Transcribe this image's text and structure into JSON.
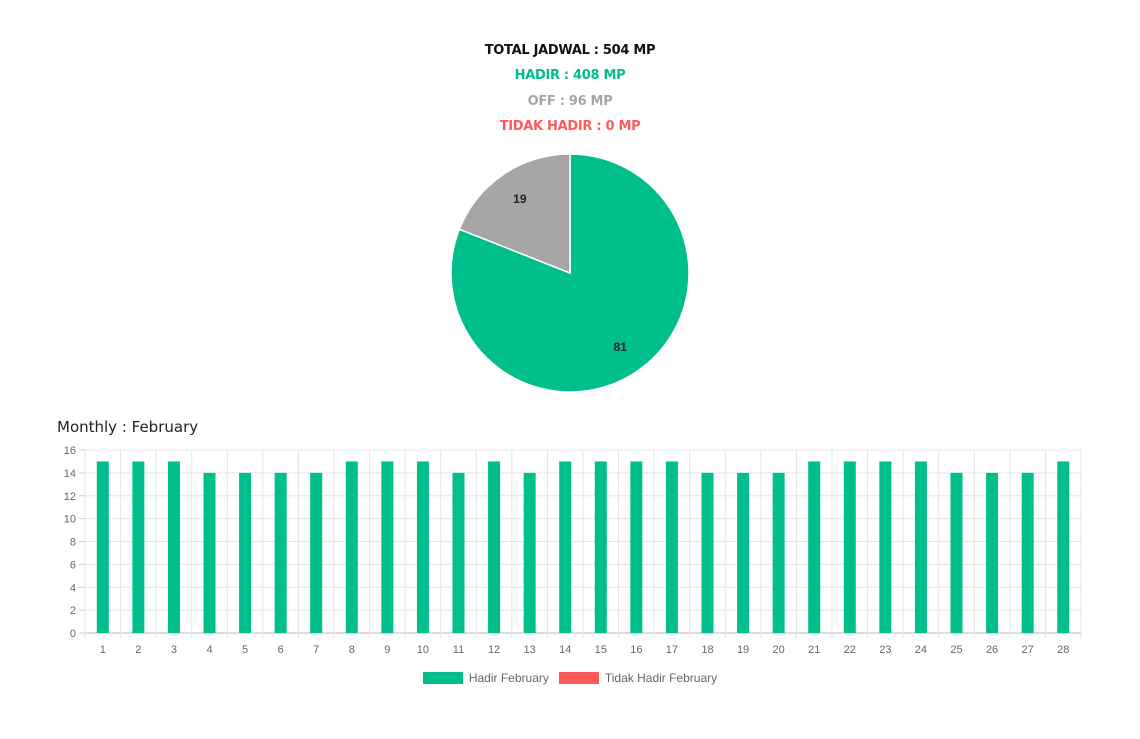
{
  "summary": {
    "total": "TOTAL JADWAL : 504 MP",
    "hadir": "HADIR : 408 MP",
    "off": "OFF : 96 MP",
    "tidak_hadir": "TIDAK HADIR : 0 MP"
  },
  "colors": {
    "hadir": "#00bf8a",
    "off": "#a6a6a6",
    "tidak_hadir": "#ff5a5a",
    "total": "#111111"
  },
  "monthly_title": "Monthly : February",
  "chart_data": [
    {
      "type": "pie",
      "categories": [
        "Hadir",
        "Off"
      ],
      "values": [
        81,
        19
      ],
      "data_labels": [
        "81",
        "19"
      ],
      "colors": [
        "#00bf8a",
        "#a6a6a6"
      ]
    },
    {
      "type": "bar",
      "categories": [
        "1",
        "2",
        "3",
        "4",
        "5",
        "6",
        "7",
        "8",
        "9",
        "10",
        "11",
        "12",
        "13",
        "14",
        "15",
        "16",
        "17",
        "18",
        "19",
        "20",
        "21",
        "22",
        "23",
        "24",
        "25",
        "26",
        "27",
        "28"
      ],
      "series": [
        {
          "name": "Hadir February",
          "color": "#00bf8a",
          "values": [
            15,
            15,
            15,
            14,
            14,
            14,
            14,
            15,
            15,
            15,
            14,
            15,
            14,
            15,
            15,
            15,
            15,
            14,
            14,
            14,
            15,
            15,
            15,
            15,
            14,
            14,
            14,
            15
          ]
        },
        {
          "name": "Tidak Hadir February",
          "color": "#ff5a5a",
          "values": [
            0,
            0,
            0,
            0,
            0,
            0,
            0,
            0,
            0,
            0,
            0,
            0,
            0,
            0,
            0,
            0,
            0,
            0,
            0,
            0,
            0,
            0,
            0,
            0,
            0,
            0,
            0,
            0
          ]
        }
      ],
      "ylim": [
        0,
        16
      ],
      "yticks": [
        0,
        2,
        4,
        6,
        8,
        10,
        12,
        14,
        16
      ],
      "grid": true,
      "legend": "bottom"
    }
  ]
}
